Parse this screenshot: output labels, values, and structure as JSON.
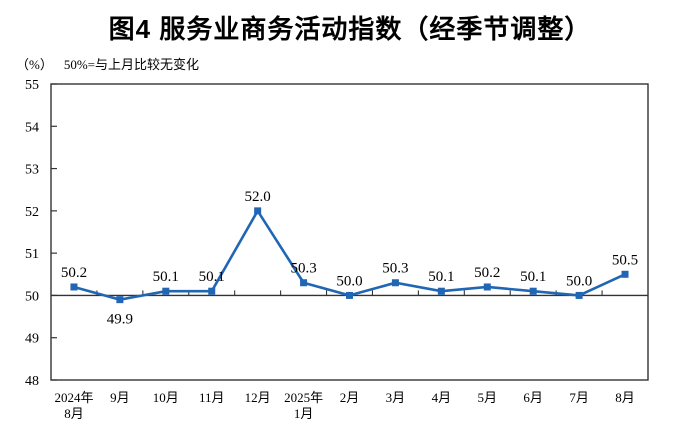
{
  "header": {
    "title": "图4 服务业商务活动指数（经季节调整）",
    "unit_label": "（%）",
    "note": "50%=与上月比较无变化"
  },
  "chart_data": {
    "type": "line",
    "title": "图4 服务业商务活动指数（经季节调整）",
    "subtitle": "（%） 50%=与上月比较无变化",
    "categories": [
      [
        "2024年",
        "8月"
      ],
      [
        "9月"
      ],
      [
        "10月"
      ],
      [
        "11月"
      ],
      [
        "12月"
      ],
      [
        "2025年",
        "1月"
      ],
      [
        "2月"
      ],
      [
        "3月"
      ],
      [
        "4月"
      ],
      [
        "5月"
      ],
      [
        "6月"
      ],
      [
        "7月"
      ],
      [
        "8月"
      ]
    ],
    "values": [
      50.2,
      49.9,
      50.1,
      50.1,
      52.0,
      50.3,
      50.0,
      50.3,
      50.1,
      50.2,
      50.1,
      50.0,
      50.5
    ],
    "data_labels": [
      "50.2",
      "49.9",
      "50.1",
      "50.1",
      "52.0",
      "50.3",
      "50.0",
      "50.3",
      "50.1",
      "50.2",
      "50.1",
      "50.0",
      "50.5"
    ],
    "label_below_indices": [
      1
    ],
    "xlabel": "",
    "ylabel": "（%）",
    "ylim": [
      48,
      55
    ],
    "yticks": [
      48,
      49,
      50,
      51,
      52,
      53,
      54,
      55
    ],
    "baseline": 50,
    "grid": false,
    "legend": "none",
    "line_color": "#2166B4",
    "axis_color": "#333333",
    "text_color": "#000000"
  }
}
